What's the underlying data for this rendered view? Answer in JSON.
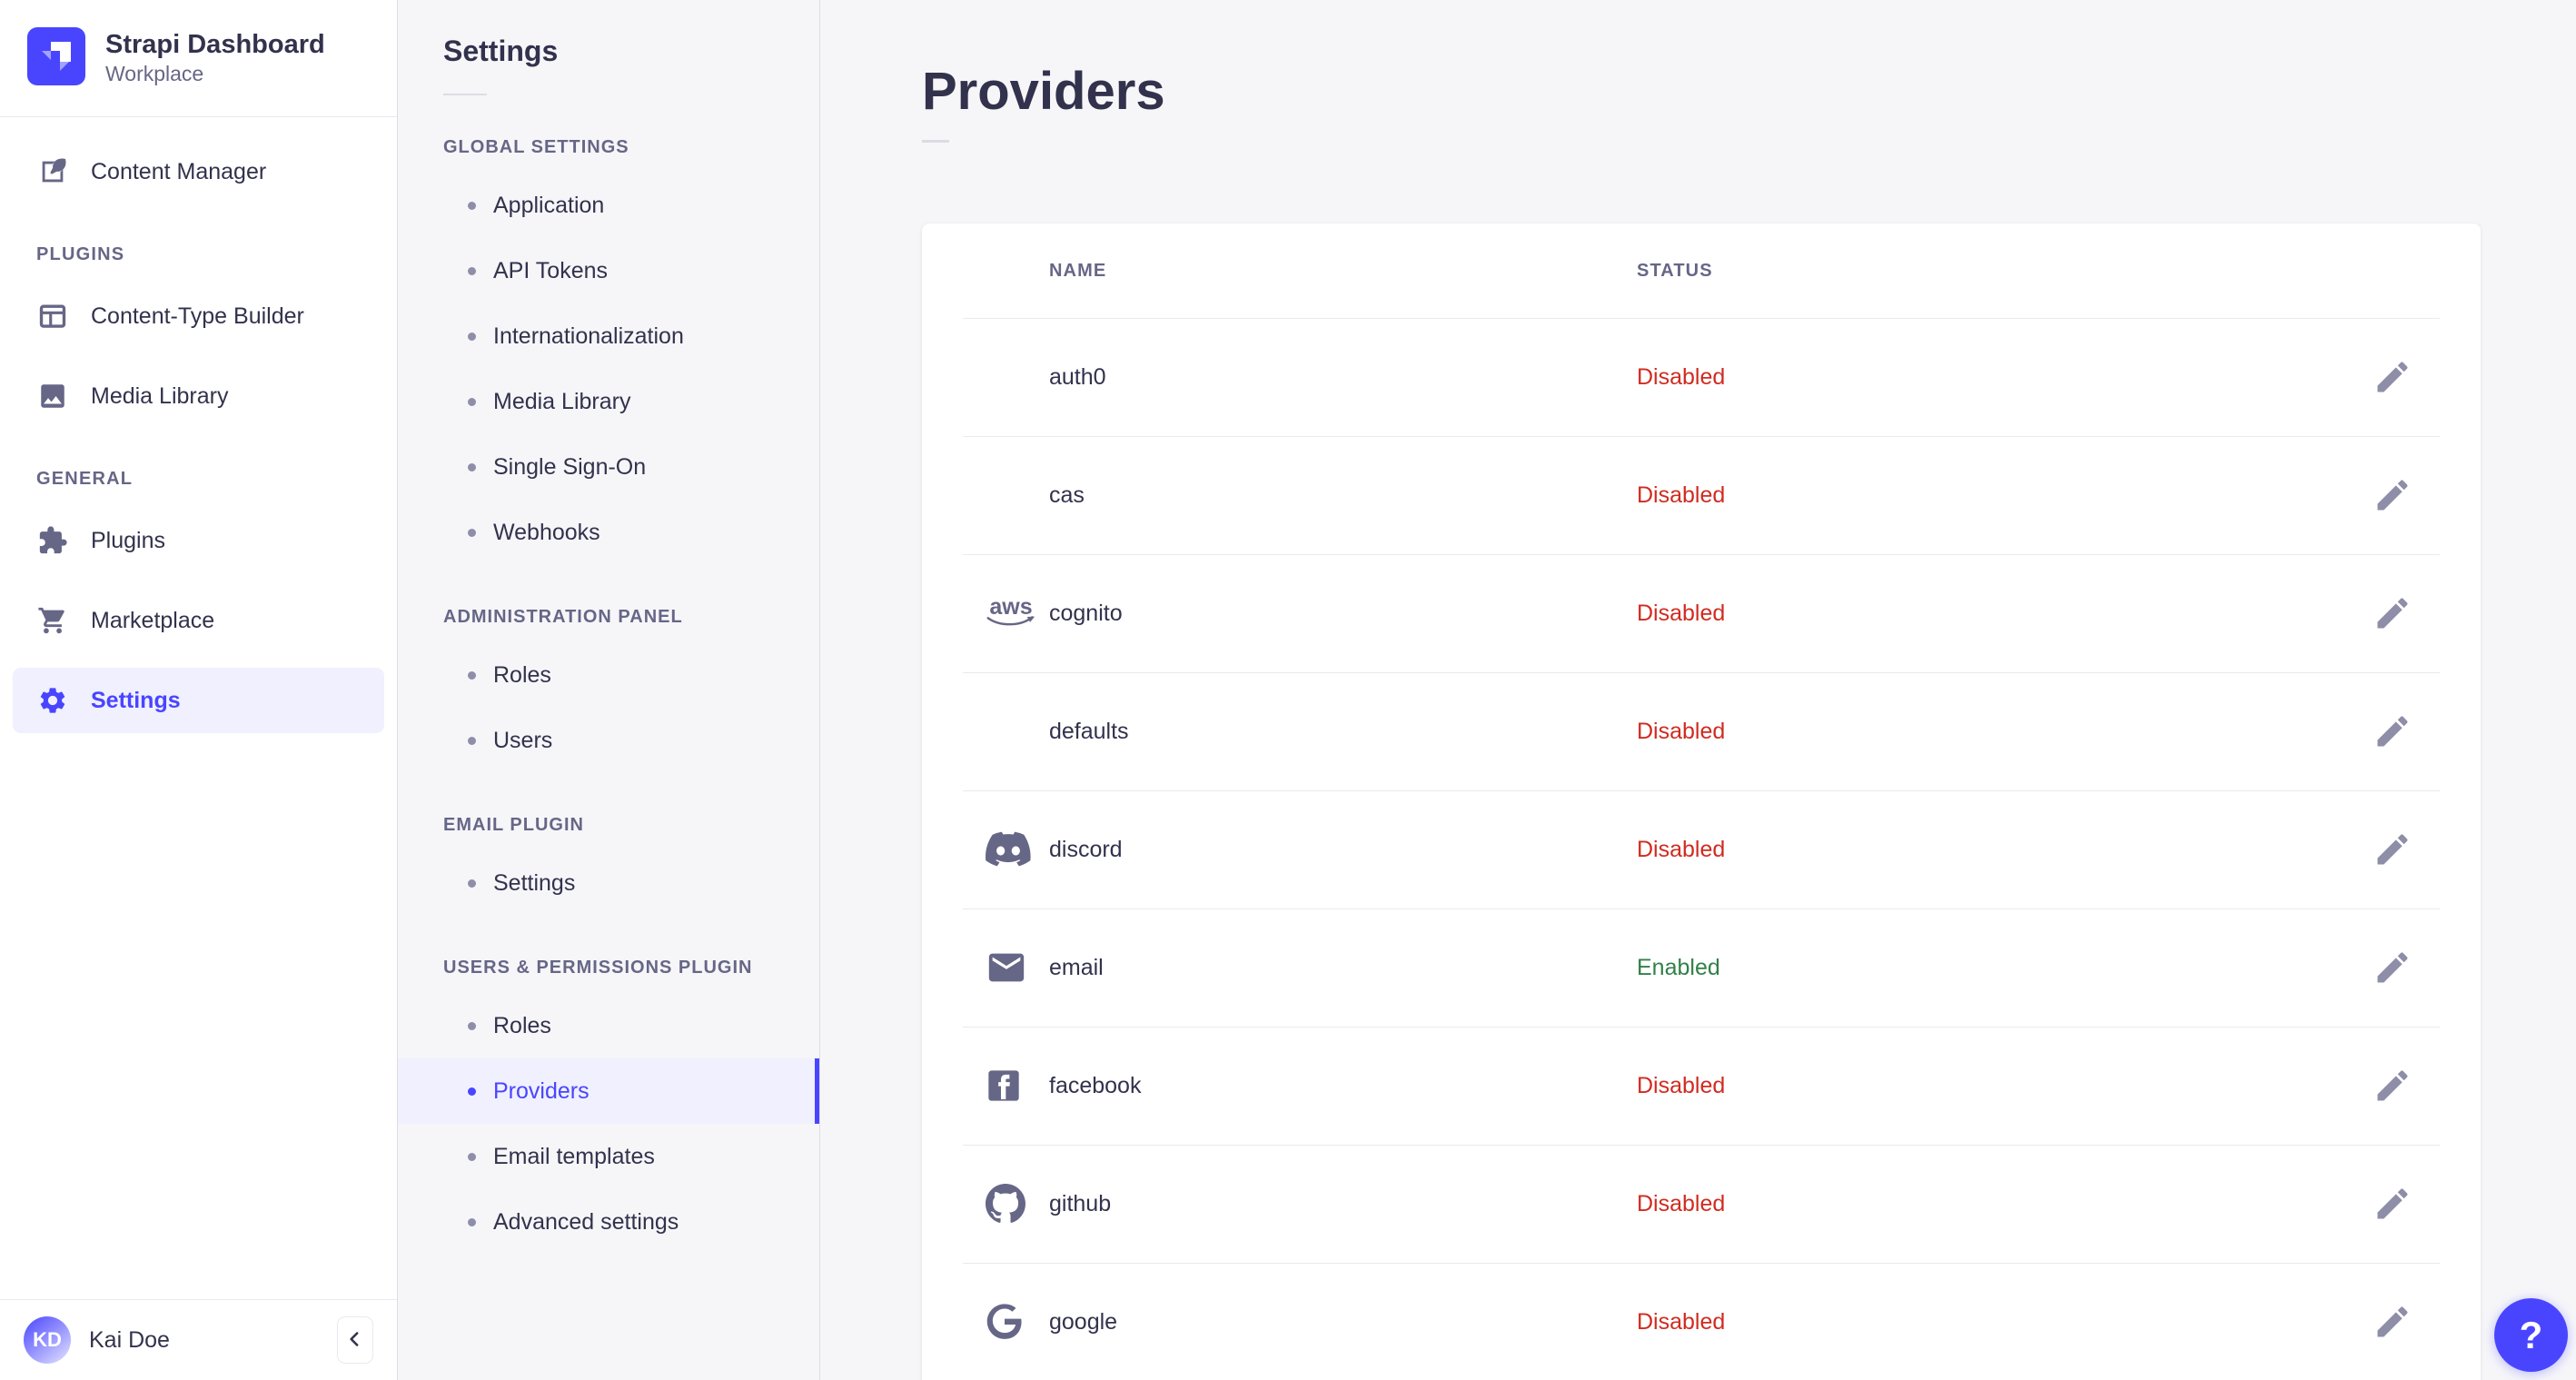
{
  "app": {
    "name": "Strapi Dashboard",
    "workspace": "Workplace"
  },
  "colors": {
    "accent": "#4945ff",
    "accent_bg": "#f0f0ff",
    "status_disabled": "#d02b20",
    "status_enabled": "#328048",
    "text_dark": "#32324d",
    "text_muted": "#666687"
  },
  "nav": {
    "primary_item": {
      "label": "Content Manager",
      "icon": "content-manager-icon"
    },
    "sections": [
      {
        "label": "PLUGINS",
        "items": [
          {
            "label": "Content-Type Builder",
            "icon": "content-type-builder-icon"
          },
          {
            "label": "Media Library",
            "icon": "media-library-icon"
          }
        ]
      },
      {
        "label": "GENERAL",
        "items": [
          {
            "label": "Plugins",
            "icon": "plugins-icon"
          },
          {
            "label": "Marketplace",
            "icon": "marketplace-icon"
          },
          {
            "label": "Settings",
            "icon": "settings-icon",
            "active": true
          }
        ]
      }
    ],
    "user": {
      "initials": "KD",
      "name": "Kai Doe"
    },
    "collapse_icon": "chevron-left-icon"
  },
  "subnav": {
    "title": "Settings",
    "sections": [
      {
        "label": "GLOBAL SETTINGS",
        "items": [
          "Application",
          "API Tokens",
          "Internationalization",
          "Media Library",
          "Single Sign-On",
          "Webhooks"
        ]
      },
      {
        "label": "ADMINISTRATION PANEL",
        "items": [
          "Roles",
          "Users"
        ]
      },
      {
        "label": "EMAIL PLUGIN",
        "items": [
          "Settings"
        ]
      },
      {
        "label": "USERS & PERMISSIONS PLUGIN",
        "active_item": "Providers",
        "items": [
          "Roles",
          "Providers",
          "Email templates",
          "Advanced settings"
        ]
      }
    ]
  },
  "main": {
    "title": "Providers",
    "table": {
      "columns": [
        "NAME",
        "STATUS"
      ],
      "rows": [
        {
          "name": "auth0",
          "icon": null,
          "status": "Disabled"
        },
        {
          "name": "cas",
          "icon": null,
          "status": "Disabled"
        },
        {
          "name": "cognito",
          "icon": "aws",
          "status": "Disabled"
        },
        {
          "name": "defaults",
          "icon": null,
          "status": "Disabled"
        },
        {
          "name": "discord",
          "icon": "discord",
          "status": "Disabled"
        },
        {
          "name": "email",
          "icon": "email",
          "status": "Enabled"
        },
        {
          "name": "facebook",
          "icon": "facebook",
          "status": "Disabled"
        },
        {
          "name": "github",
          "icon": "github",
          "status": "Disabled"
        },
        {
          "name": "google",
          "icon": "google",
          "status": "Disabled"
        }
      ]
    }
  },
  "help": {
    "label": "?"
  }
}
